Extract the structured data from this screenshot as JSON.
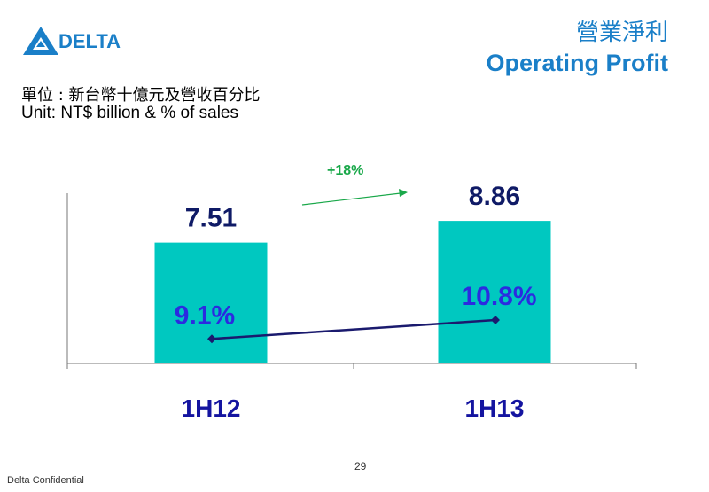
{
  "header": {
    "logo_text": "DELTA",
    "title_zh": "營業淨利",
    "title_en": "Operating Profit"
  },
  "unit": {
    "zh": "單位 : 新台幣十億元及營收百分比",
    "en": "Unit: NT$ billion & % of sales"
  },
  "growth_label": "+18%",
  "footer": {
    "confidential": "Delta Confidential",
    "page_number": "29"
  },
  "colors": {
    "brand_blue": "#1a7fc8",
    "bar": "#00c8c0",
    "line": "#1a1a6e",
    "growth_arrow": "#1aa84a"
  },
  "chart_data": {
    "type": "bar",
    "categories": [
      "1H12",
      "1H13"
    ],
    "series": [
      {
        "values": [
          7.51,
          8.86
        ],
        "labels": [
          "7.51",
          "8.86"
        ]
      },
      {
        "values": [
          9.1,
          10.8
        ],
        "labels": [
          "9.1%",
          "10.8%"
        ],
        "type": "line"
      }
    ],
    "ylim": [
      0,
      10
    ],
    "grid": false
  }
}
